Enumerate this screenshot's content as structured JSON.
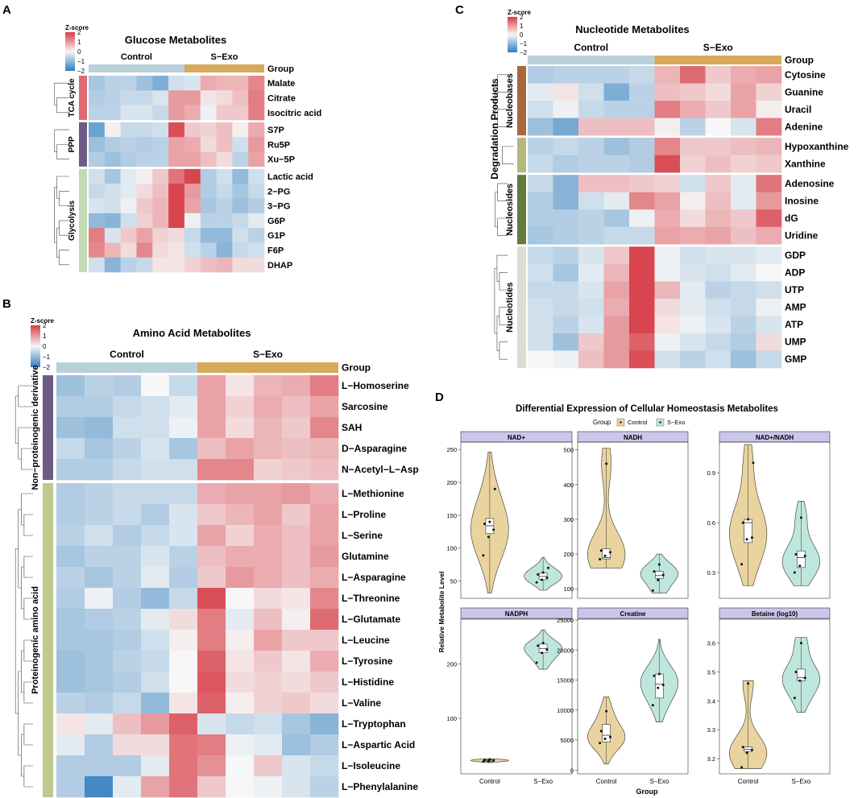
{
  "figure": {
    "panel_labels": [
      "A",
      "B",
      "C",
      "D"
    ],
    "legend_title": "Z-score",
    "legend_ticks": [
      "2",
      "1",
      "0",
      "−1",
      "−2"
    ],
    "group_label": "Group",
    "group_names": [
      "Control",
      "S−Exo"
    ],
    "colors": {
      "control": "#b9d0da",
      "sexo": "#d6aa59",
      "high": "#d73c45",
      "mid": "#f7f7f7",
      "low": "#2f7dbe",
      "violin_control": "#e9d39f",
      "violin_sexo": "#bfe6dc",
      "strip": "#c9c7ea"
    }
  },
  "chart_data": [
    {
      "type": "heatmap",
      "panel": "A",
      "title": "Glucose Metabolites",
      "columns": [
        "Control",
        "Control",
        "Control",
        "Control",
        "Control",
        "Control",
        "S−Exo",
        "S−Exo",
        "S−Exo",
        "S−Exo",
        "S−Exo"
      ],
      "rows": [
        "Malate",
        "Citrate",
        "Isocitric acid",
        "S7P",
        "Ru5P",
        "Xu−5P",
        "Lactic acid",
        "2−PG",
        "3−PG",
        "G6P",
        "G1P",
        "F6P",
        "DHAP"
      ],
      "row_groups": [
        {
          "label": "TCA cycle",
          "color": "#e06a72",
          "rows": 3
        },
        {
          "label": "PPP",
          "color": "#6c5b84",
          "rows": 3
        },
        {
          "label": "Glycolysis",
          "color": "#c3dbb4",
          "rows": 7
        }
      ],
      "values": [
        [
          -0.8,
          -0.6,
          -0.6,
          -0.9,
          -1.2,
          -0.4,
          -0.3,
          0.8,
          0.7,
          0.7,
          1.2
        ],
        [
          -0.7,
          -0.6,
          -0.5,
          -0.5,
          -0.3,
          1.0,
          1.0,
          0.2,
          0.3,
          0.6,
          1.3
        ],
        [
          -0.6,
          -0.6,
          -0.3,
          -0.3,
          -0.5,
          1.0,
          0.8,
          -0.1,
          0.5,
          0.5,
          1.3
        ],
        [
          -1.4,
          0.1,
          -0.5,
          -0.5,
          -0.4,
          1.8,
          0.5,
          0.4,
          0.6,
          0.1,
          0.8
        ],
        [
          -0.9,
          -0.7,
          -0.6,
          -0.7,
          -0.6,
          0.9,
          0.8,
          0.3,
          0.6,
          -0.4,
          1.0
        ],
        [
          -0.7,
          -0.9,
          -0.7,
          -0.6,
          -0.6,
          0.9,
          0.9,
          0.6,
          0.3,
          -0.6,
          0.9
        ],
        [
          -0.4,
          -0.8,
          -0.2,
          0.1,
          0.5,
          1.4,
          1.9,
          -0.7,
          -0.4,
          -1.0,
          -0.4
        ],
        [
          -0.5,
          -0.4,
          -0.2,
          0.3,
          0.6,
          1.9,
          1.0,
          -0.7,
          -0.5,
          -0.8,
          -0.5
        ],
        [
          -0.3,
          -0.4,
          -0.1,
          0.5,
          0.7,
          1.9,
          0.9,
          -0.8,
          -0.6,
          -0.9,
          -0.7
        ],
        [
          -1.0,
          -1.1,
          -0.4,
          0.4,
          0.7,
          1.9,
          -0.1,
          -0.6,
          -0.6,
          -0.5,
          -0.2
        ],
        [
          1.3,
          -0.3,
          0.5,
          0.9,
          0.4,
          0.3,
          -0.5,
          -1.0,
          -1.0,
          -0.4,
          -0.6
        ],
        [
          1.2,
          0.7,
          0.3,
          1.2,
          0.3,
          0.2,
          -0.4,
          -0.6,
          -1.1,
          -0.5,
          -0.4
        ],
        [
          -0.4,
          -1.1,
          -0.6,
          -0.5,
          0.2,
          0.2,
          0.4,
          0.6,
          0.7,
          0.3,
          0.3
        ]
      ]
    },
    {
      "type": "heatmap",
      "panel": "B",
      "title": "Amino Acid Metabolites",
      "columns": [
        "Control",
        "Control",
        "Control",
        "Control",
        "Control",
        "S−Exo",
        "S−Exo",
        "S−Exo",
        "S−Exo",
        "S−Exo"
      ],
      "rows": [
        "L−Homoserine",
        "Sarcosine",
        "SAH",
        "D−Asparagine",
        "N−Acetyl−L−Asp",
        "L−Methionine",
        "L−Proline",
        "L−Serine",
        "Glutamine",
        "L−Asparagine",
        "L−Threonine",
        "L−Glutamate",
        "L−Leucine",
        "L−Tyrosine",
        "L−Histidine",
        "L−Valine",
        "L−Tryptophan",
        "L−Aspartic Acid",
        "L−Isoleucine",
        "L−Phenylalanine"
      ],
      "row_groups": [
        {
          "label": "Non−proteinogenic derivative",
          "color": "#6c5b84",
          "rows": 5
        },
        {
          "label": "Proteinogenic amino acid",
          "color": "#c0c98e",
          "rows": 15
        }
      ],
      "values": [
        [
          -0.9,
          -0.6,
          -0.7,
          0.0,
          -0.5,
          0.9,
          0.2,
          0.7,
          0.8,
          1.3
        ],
        [
          -0.7,
          -0.7,
          -0.5,
          -0.4,
          -0.2,
          0.9,
          0.4,
          0.8,
          0.6,
          0.9
        ],
        [
          -0.9,
          -1.0,
          -0.4,
          -0.4,
          -0.1,
          0.9,
          0.3,
          0.7,
          0.5,
          1.2
        ],
        [
          -0.5,
          -0.8,
          -0.6,
          -0.3,
          -0.8,
          0.6,
          0.9,
          0.7,
          0.6,
          0.7
        ],
        [
          -0.7,
          -0.7,
          -0.5,
          -0.4,
          -0.4,
          1.2,
          1.2,
          0.4,
          0.5,
          0.6
        ],
        [
          -0.7,
          -0.6,
          -0.5,
          -0.5,
          -0.5,
          0.8,
          0.9,
          0.9,
          1.0,
          0.8
        ],
        [
          -0.7,
          -0.6,
          -0.5,
          -0.7,
          -0.3,
          0.5,
          0.7,
          0.9,
          0.5,
          0.9
        ],
        [
          -0.6,
          -0.4,
          -0.7,
          -0.5,
          -0.3,
          0.9,
          0.4,
          0.8,
          0.6,
          0.9
        ],
        [
          -0.8,
          -0.6,
          -0.6,
          -0.3,
          -0.6,
          0.6,
          0.8,
          0.8,
          0.6,
          1.0
        ],
        [
          -0.6,
          -0.8,
          -0.6,
          -0.2,
          -0.7,
          0.5,
          1.0,
          0.8,
          0.6,
          0.8
        ],
        [
          -0.7,
          -0.1,
          -0.7,
          -1.0,
          -0.5,
          1.8,
          0.0,
          0.3,
          0.2,
          1.2
        ],
        [
          -0.8,
          -0.7,
          -0.6,
          -0.2,
          0.3,
          1.3,
          -0.2,
          0.6,
          0.1,
          1.5
        ],
        [
          -0.8,
          -0.8,
          -0.7,
          -0.4,
          0.1,
          1.3,
          0.1,
          0.9,
          0.5,
          0.5
        ],
        [
          -0.9,
          -0.8,
          -0.6,
          -0.5,
          0.0,
          1.6,
          0.2,
          0.5,
          0.2,
          0.8
        ],
        [
          -0.9,
          -0.8,
          -0.7,
          -0.4,
          0.0,
          1.7,
          0.3,
          0.4,
          0.3,
          0.5
        ],
        [
          -0.6,
          -0.7,
          -0.5,
          -1.0,
          0.2,
          1.6,
          0.1,
          0.4,
          0.5,
          0.3
        ],
        [
          0.2,
          -0.2,
          0.6,
          1.0,
          1.6,
          -0.3,
          -0.5,
          -0.4,
          -0.8,
          -1.1
        ],
        [
          -0.2,
          -0.7,
          0.3,
          0.3,
          1.4,
          1.3,
          -0.1,
          -0.2,
          -0.9,
          -0.7
        ],
        [
          -0.7,
          -0.7,
          -0.7,
          -0.2,
          1.4,
          1.1,
          0.0,
          0.5,
          -0.3,
          -0.5
        ],
        [
          -0.7,
          -1.8,
          -0.2,
          0.9,
          1.4,
          0.5,
          0.0,
          -0.1,
          -0.3,
          -0.6
        ]
      ]
    },
    {
      "type": "heatmap",
      "panel": "C",
      "title": "Nucleotide Metabolites",
      "columns": [
        "Control",
        "Control",
        "Control",
        "Control",
        "Control",
        "S−Exo",
        "S−Exo",
        "S−Exo",
        "S−Exo",
        "S−Exo"
      ],
      "rows": [
        "Cytosine",
        "Guanine",
        "Uracil",
        "Adenine",
        "Hypoxanthine",
        "Xanthine",
        "Adenosine",
        "Inosine",
        "dG",
        "Uridine",
        "GDP",
        "ADP",
        "UTP",
        "AMP",
        "ATP",
        "UMP",
        "GMP"
      ],
      "row_groups": [
        {
          "label": "Nucleobases",
          "color": "#a9683b",
          "rows": 4
        },
        {
          "label": "",
          "color": "#b4b87f",
          "rows": 2
        },
        {
          "label": "Nucleosides",
          "color": "#647a3d",
          "rows": 4
        },
        {
          "label": "Nucleotides",
          "color": "#dcdcd2",
          "rows": 7
        }
      ],
      "outer_label": "Degradation Products",
      "values": [
        [
          -0.7,
          -0.6,
          -0.6,
          -0.6,
          -0.5,
          0.7,
          1.5,
          0.5,
          0.8,
          0.9
        ],
        [
          -0.2,
          0.2,
          -0.4,
          -1.2,
          -0.6,
          0.6,
          0.5,
          0.3,
          0.9,
          0.4
        ],
        [
          -0.4,
          -0.1,
          -0.5,
          -0.6,
          -0.6,
          1.3,
          0.8,
          0.5,
          0.9,
          0.1
        ],
        [
          -0.9,
          -1.3,
          0.6,
          0.6,
          0.6,
          0.1,
          -0.6,
          0.0,
          -0.3,
          1.3
        ],
        [
          -0.6,
          -0.5,
          -0.6,
          -0.9,
          -0.7,
          1.2,
          0.5,
          0.5,
          0.6,
          0.7
        ],
        [
          -0.5,
          -0.7,
          -0.6,
          -0.6,
          -0.7,
          1.8,
          0.4,
          0.6,
          0.4,
          0.5
        ],
        [
          -0.5,
          -1.1,
          0.6,
          0.6,
          0.5,
          0.4,
          -0.4,
          0.5,
          -0.2,
          1.4
        ],
        [
          -0.7,
          -1.1,
          -0.4,
          -0.2,
          1.2,
          0.9,
          0.1,
          0.6,
          -0.2,
          1.0
        ],
        [
          -0.7,
          -0.7,
          -0.6,
          -0.8,
          -0.1,
          0.8,
          0.3,
          0.7,
          0.5,
          1.6
        ],
        [
          -0.8,
          -0.7,
          -0.6,
          -0.5,
          -0.5,
          0.9,
          0.8,
          0.9,
          0.6,
          0.8
        ],
        [
          -0.5,
          -0.6,
          -0.3,
          0.5,
          1.9,
          -0.1,
          -0.4,
          -0.3,
          -0.3,
          -0.2
        ],
        [
          -0.4,
          -0.8,
          -0.2,
          0.7,
          1.9,
          -0.1,
          -0.3,
          -0.4,
          -0.2,
          0.0
        ],
        [
          -0.5,
          -0.5,
          -0.3,
          0.9,
          1.9,
          0.7,
          -0.2,
          -0.6,
          -0.5,
          -0.4
        ],
        [
          -0.4,
          -0.5,
          -0.4,
          0.8,
          1.9,
          0.3,
          -0.2,
          -0.4,
          -0.5,
          -0.1
        ],
        [
          -0.4,
          -0.6,
          -0.3,
          1.0,
          1.9,
          0.2,
          -0.1,
          -0.3,
          -0.6,
          -0.3
        ],
        [
          -0.4,
          -0.9,
          0.5,
          1.0,
          1.6,
          -0.1,
          -0.3,
          -0.5,
          -0.7,
          0.3
        ],
        [
          0.0,
          -0.1,
          0.6,
          1.0,
          1.8,
          -0.4,
          -0.6,
          -0.4,
          -0.9,
          -0.5
        ]
      ]
    },
    {
      "type": "violin",
      "panel": "D",
      "title": "Differential Expression of Cellular Homeostasis Metabolites",
      "legend_title": "Group",
      "groups": [
        "Control",
        "S−Exo"
      ],
      "xlabel": "Group",
      "ylabel": "Relative Metabolite Level",
      "facets": [
        {
          "title": "NAD+",
          "ylim": [
            25,
            260
          ],
          "yticks": [
            50,
            100,
            150,
            200,
            250
          ],
          "control": {
            "points": [
              89,
              117,
              128,
              137,
              140,
              190
            ],
            "q1": 122,
            "median": 134,
            "q3": 145,
            "min": 32,
            "max": 246
          },
          "sexo": {
            "points": [
              48,
              52,
              55,
              60,
              63,
              70
            ],
            "q1": 52,
            "median": 57,
            "q3": 62,
            "min": 36,
            "max": 86
          }
        },
        {
          "title": "NADH",
          "ylim": [
            75,
            520
          ],
          "yticks": [
            100,
            200,
            300,
            400,
            500
          ],
          "control": {
            "points": [
              185,
              195,
              205,
              210,
              460
            ],
            "q1": 186,
            "median": 190,
            "q3": 215,
            "min": 160,
            "max": 505
          },
          "sexo": {
            "points": [
              95,
              125,
              140,
              150,
              170
            ],
            "q1": 130,
            "median": 138,
            "q3": 150,
            "min": 88,
            "max": 200
          }
        },
        {
          "title": "NAD+/NADH",
          "ylim": [
            0.15,
            1.08
          ],
          "yticks": [
            0.3,
            0.6,
            0.9
          ],
          "control": {
            "points": [
              0.35,
              0.5,
              0.51,
              0.6,
              0.62,
              0.96
            ],
            "q1": 0.48,
            "median": 0.6,
            "q3": 0.62,
            "min": 0.22,
            "max": 1.07
          },
          "sexo": {
            "points": [
              0.3,
              0.34,
              0.4,
              0.41,
              0.63
            ],
            "q1": 0.33,
            "median": 0.39,
            "q3": 0.43,
            "min": 0.22,
            "max": 0.73
          }
        },
        {
          "title": "NADPH",
          "ylim": [
            0,
            280
          ],
          "yticks": [
            100,
            200
          ],
          "control": {
            "points": [
              21,
              22,
              23,
              24,
              25
            ],
            "q1": 21,
            "median": 22,
            "q3": 24,
            "min": 19,
            "max": 26
          },
          "sexo": {
            "points": [
              202,
              220,
              226,
              233,
              238
            ],
            "q1": 220,
            "median": 228,
            "q3": 236,
            "min": 190,
            "max": 262
          }
        },
        {
          "title": "Creatine",
          "ylim": [
            -500,
            25000
          ],
          "yticks": [
            0,
            5000,
            10000,
            15000,
            20000,
            25000
          ],
          "control": {
            "points": [
              4500,
              5200,
              5500,
              6500,
              9800
            ],
            "q1": 4700,
            "median": 5800,
            "q3": 7600,
            "min": 1000,
            "max": 12200
          },
          "sexo": {
            "points": [
              10800,
              13700,
              14200,
              15700,
              16000
            ],
            "q1": 12000,
            "median": 14300,
            "q3": 16000,
            "min": 8000,
            "max": 21800
          }
        },
        {
          "title": "Betaine (log10)",
          "ylim": [
            3.15,
            3.68
          ],
          "yticks": [
            3.2,
            3.3,
            3.4,
            3.5,
            3.6
          ],
          "control": {
            "points": [
              3.17,
              3.22,
              3.23,
              3.24,
              3.46
            ],
            "q1": 3.225,
            "median": 3.232,
            "q3": 3.24,
            "min": 3.165,
            "max": 3.47
          },
          "sexo": {
            "points": [
              3.41,
              3.47,
              3.48,
              3.5,
              3.6
            ],
            "q1": 3.47,
            "median": 3.48,
            "q3": 3.51,
            "min": 3.36,
            "max": 3.62
          }
        }
      ]
    }
  ]
}
